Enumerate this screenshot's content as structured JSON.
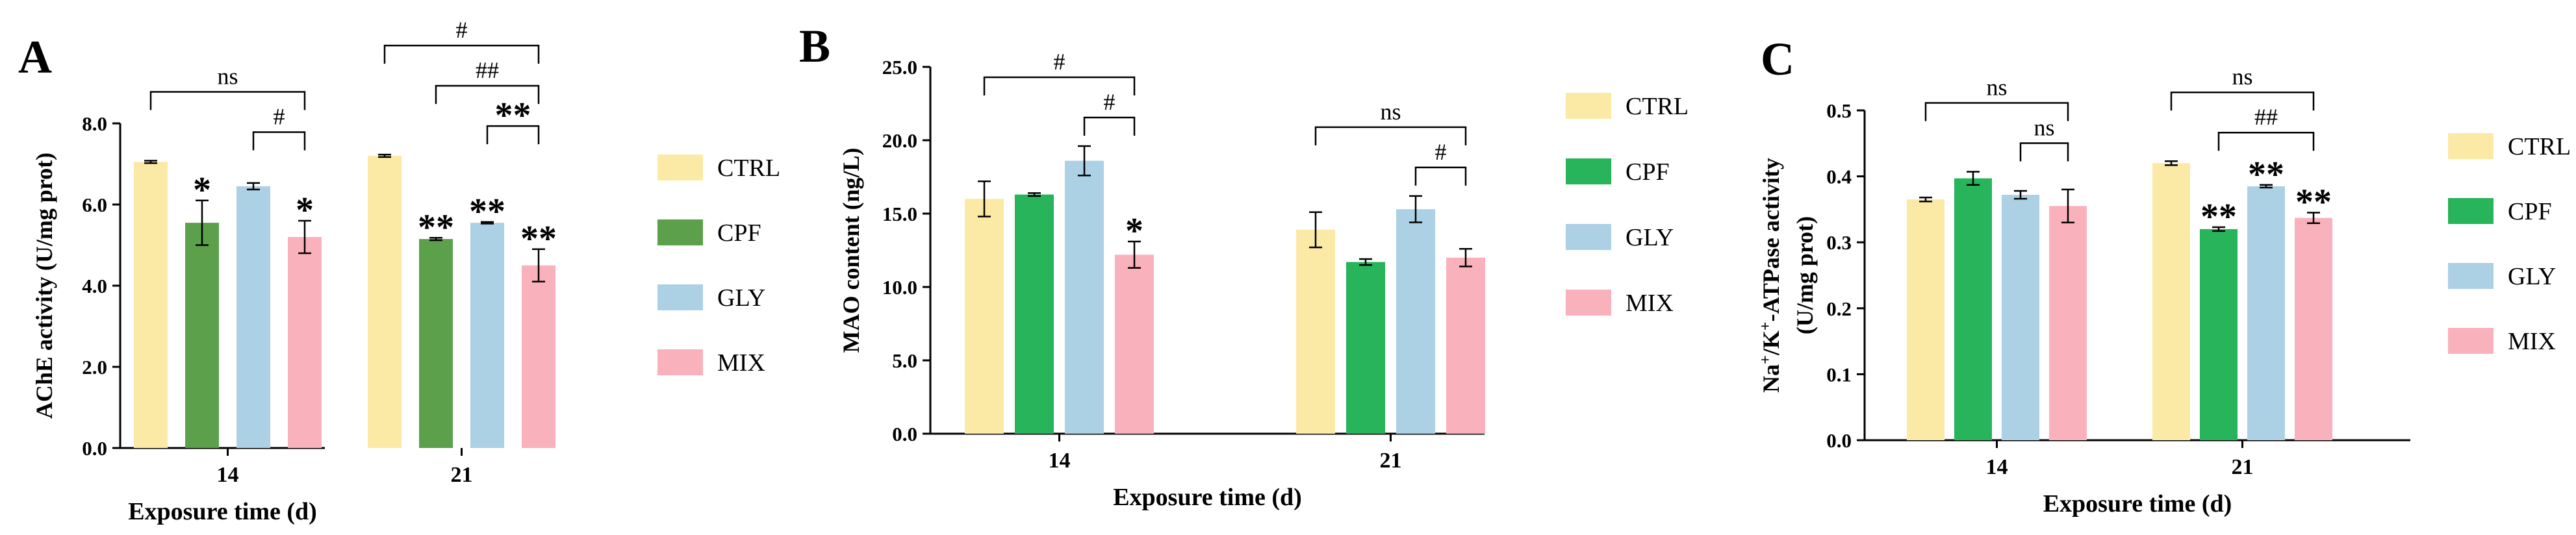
{
  "chart_data": [
    {
      "type": "bar",
      "panel_label": "A",
      "categories": [
        "14",
        "21"
      ],
      "xlabel": "Exposure time (d)",
      "ylabel": "AChE activity (U/mg prot)",
      "ylabel_parts": [
        {
          "t": "AChE activity (U/mg prot)",
          "sup": false
        }
      ],
      "ylim": [
        0,
        8
      ],
      "ytick_values": [
        0,
        2,
        4,
        6,
        8
      ],
      "ytick_labels": [
        "0.0",
        "2.0",
        "4.0",
        "6.0",
        "8.0"
      ],
      "grid": false,
      "legend": "right",
      "series": [
        {
          "name": "CTRL",
          "values": [
            7.05,
            7.2
          ],
          "errors": [
            0.03,
            0.03
          ],
          "sig": [
            "",
            ""
          ]
        },
        {
          "name": "CPF",
          "values": [
            5.55,
            5.15
          ],
          "errors": [
            0.55,
            0.03
          ],
          "sig": [
            "*",
            "**"
          ]
        },
        {
          "name": "GLY",
          "values": [
            6.45,
            5.55
          ],
          "errors": [
            0.08,
            0.02
          ],
          "sig": [
            "",
            "**"
          ]
        },
        {
          "name": "MIX",
          "values": [
            5.2,
            4.5
          ],
          "errors": [
            0.4,
            0.4
          ],
          "sig": [
            "*",
            "**"
          ]
        }
      ],
      "brackets": [
        {
          "group": 0,
          "from": 0,
          "to": 3,
          "label": "ns",
          "level": 2
        },
        {
          "group": 0,
          "from": 2,
          "to": 3,
          "label": "#",
          "level": 1
        },
        {
          "group": 1,
          "from": 0,
          "to": 3,
          "label": "#",
          "level": 3
        },
        {
          "group": 1,
          "from": 1,
          "to": 3,
          "label": "##",
          "level": 2
        },
        {
          "group": 1,
          "from": 2,
          "to": 3,
          "label": "**",
          "level": 1
        }
      ]
    },
    {
      "type": "bar",
      "panel_label": "B",
      "categories": [
        "14",
        "21"
      ],
      "xlabel": "Exposure time (d)",
      "ylabel": "MAO content (ng/L)",
      "ylabel_parts": [
        {
          "t": "MAO content (ng/L)",
          "sup": false
        }
      ],
      "ylim": [
        0,
        25
      ],
      "ytick_values": [
        0,
        5,
        10,
        15,
        20,
        25
      ],
      "ytick_labels": [
        "0.0",
        "5.0",
        "10.0",
        "15.0",
        "20.0",
        "25.0"
      ],
      "grid": false,
      "legend": "right",
      "series": [
        {
          "name": "CTRL",
          "values": [
            16.0,
            13.9
          ],
          "errors": [
            1.2,
            1.2
          ],
          "sig": [
            "",
            ""
          ]
        },
        {
          "name": "CPF",
          "values": [
            16.3,
            11.7
          ],
          "errors": [
            0.1,
            0.2
          ],
          "sig": [
            "",
            ""
          ]
        },
        {
          "name": "GLY",
          "values": [
            18.6,
            15.3
          ],
          "errors": [
            1.0,
            0.9
          ],
          "sig": [
            "",
            ""
          ]
        },
        {
          "name": "MIX",
          "values": [
            12.2,
            12.0
          ],
          "errors": [
            0.9,
            0.6
          ],
          "sig": [
            "*",
            ""
          ]
        }
      ],
      "brackets": [
        {
          "group": 0,
          "from": 0,
          "to": 3,
          "label": "#",
          "level": 2
        },
        {
          "group": 0,
          "from": 2,
          "to": 3,
          "label": "#",
          "level": 1
        },
        {
          "group": 1,
          "from": 0,
          "to": 3,
          "label": "ns",
          "level": 2
        },
        {
          "group": 1,
          "from": 2,
          "to": 3,
          "label": "#",
          "level": 1
        }
      ]
    },
    {
      "type": "bar",
      "panel_label": "C",
      "categories": [
        "14",
        "21"
      ],
      "xlabel": "Exposure time (d)",
      "ylabel": "Na+/K+-ATPase activity (U/mg prot)",
      "ylabel_parts": [
        {
          "t": "Na",
          "sup": false
        },
        {
          "t": "+",
          "sup": true
        },
        {
          "t": "/K",
          "sup": false
        },
        {
          "t": "+",
          "sup": true
        },
        {
          "t": "-ATPase activity",
          "sup": false
        }
      ],
      "ylabel_line2": "(U/mg prot)",
      "ylim": [
        0,
        0.5
      ],
      "ytick_values": [
        0,
        0.1,
        0.2,
        0.3,
        0.4,
        0.5
      ],
      "ytick_labels": [
        "0.0",
        "0.1",
        "0.2",
        "0.3",
        "0.4",
        "0.5"
      ],
      "grid": false,
      "legend": "right",
      "series": [
        {
          "name": "CTRL",
          "values": [
            0.365,
            0.42
          ],
          "errors": [
            0.003,
            0.003
          ],
          "sig": [
            "",
            ""
          ]
        },
        {
          "name": "CPF",
          "values": [
            0.397,
            0.32
          ],
          "errors": [
            0.01,
            0.003
          ],
          "sig": [
            "",
            "**"
          ]
        },
        {
          "name": "GLY",
          "values": [
            0.372,
            0.385
          ],
          "errors": [
            0.006,
            0.002
          ],
          "sig": [
            "",
            "**"
          ]
        },
        {
          "name": "MIX",
          "values": [
            0.355,
            0.337
          ],
          "errors": [
            0.025,
            0.008
          ],
          "sig": [
            "",
            "**"
          ]
        }
      ],
      "brackets": [
        {
          "group": 0,
          "from": 0,
          "to": 3,
          "label": "ns",
          "level": 2
        },
        {
          "group": 0,
          "from": 2,
          "to": 3,
          "label": "ns",
          "level": 1
        },
        {
          "group": 1,
          "from": 0,
          "to": 3,
          "label": "ns",
          "level": 2
        },
        {
          "group": 1,
          "from": 1,
          "to": 3,
          "label": "##",
          "level": 1
        }
      ]
    }
  ],
  "colors": {
    "panel_a": [
      "#fbeaa5",
      "#5da04c",
      "#acd0e4",
      "#f9b1bc"
    ],
    "panel_b": [
      "#fbeaa5",
      "#27b45a",
      "#acd0e4",
      "#f9b1bc"
    ],
    "panel_c": [
      "#fbeaa5",
      "#27b45a",
      "#acd0e4",
      "#f9b1bc"
    ]
  }
}
